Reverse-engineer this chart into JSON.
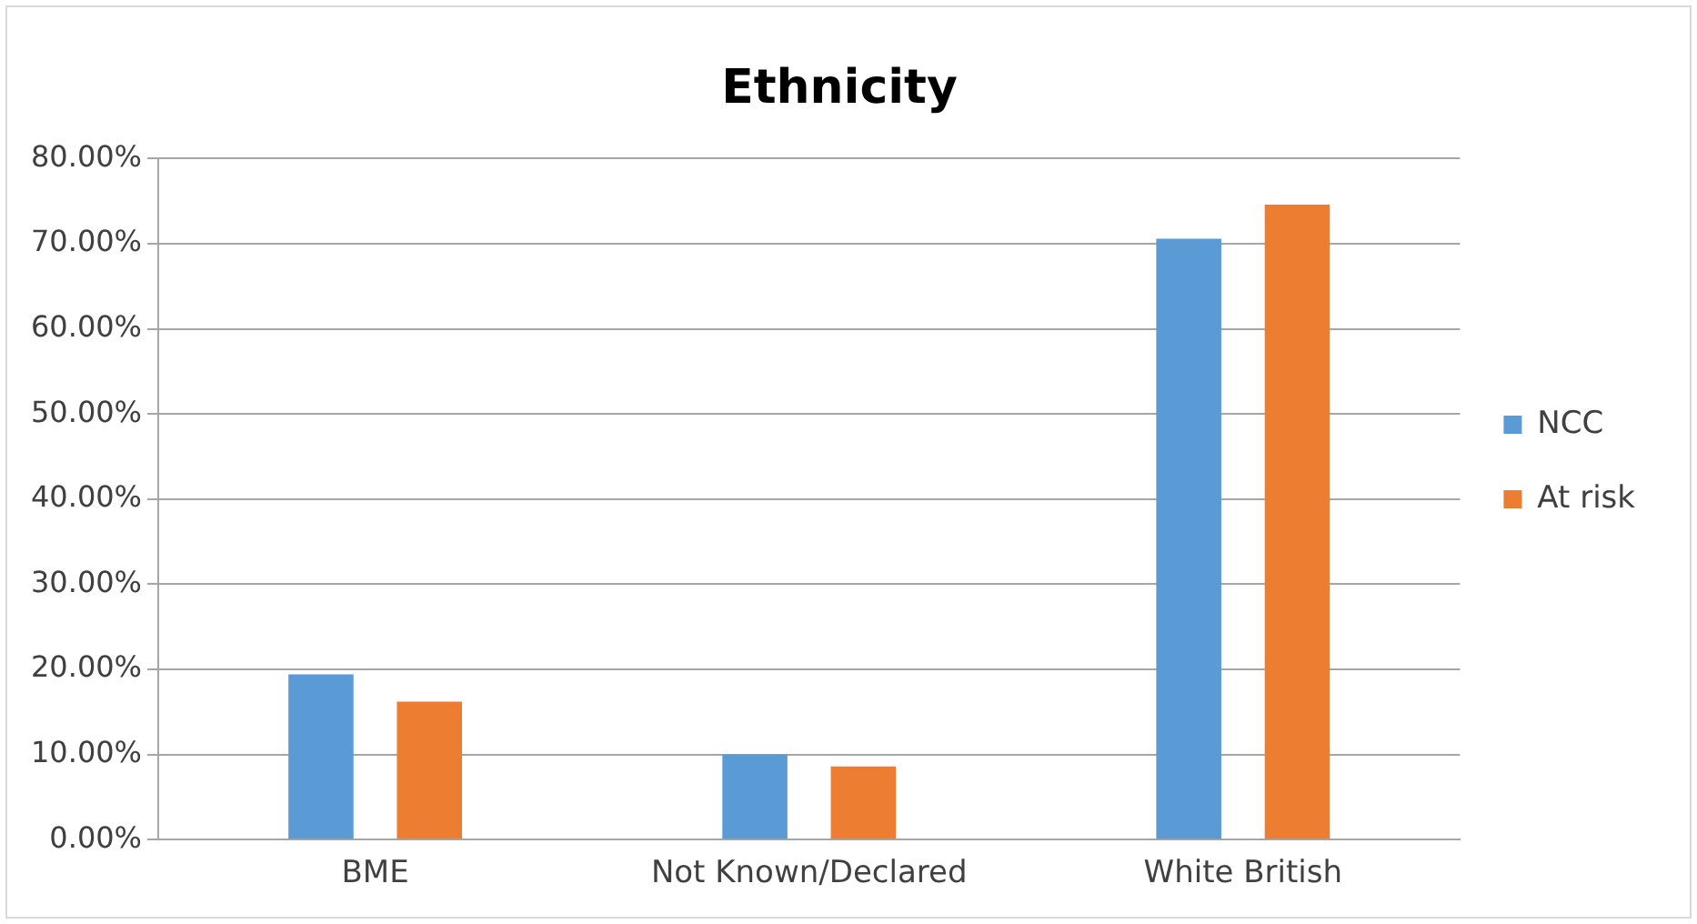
{
  "chart_data": {
    "type": "bar",
    "title": "Ethnicity",
    "categories": [
      "BME",
      "Not Known/Declared",
      "White British"
    ],
    "series": [
      {
        "name": "NCC",
        "color": "#5b9bd5",
        "values": [
          19.4,
          10.0,
          70.6
        ]
      },
      {
        "name": "At risk",
        "color": "#ed7d31",
        "values": [
          16.2,
          8.6,
          74.6
        ]
      }
    ],
    "ylim": [
      0,
      80
    ],
    "yticks": [
      {
        "value": 0,
        "label": "0.00%"
      },
      {
        "value": 10,
        "label": "10.00%"
      },
      {
        "value": 20,
        "label": "20.00%"
      },
      {
        "value": 30,
        "label": "30.00%"
      },
      {
        "value": 40,
        "label": "40.00%"
      },
      {
        "value": 50,
        "label": "50.00%"
      },
      {
        "value": 60,
        "label": "60.00%"
      },
      {
        "value": 70,
        "label": "70.00%"
      },
      {
        "value": 80,
        "label": "80.00%"
      }
    ],
    "grid": "y",
    "legend": "right"
  }
}
